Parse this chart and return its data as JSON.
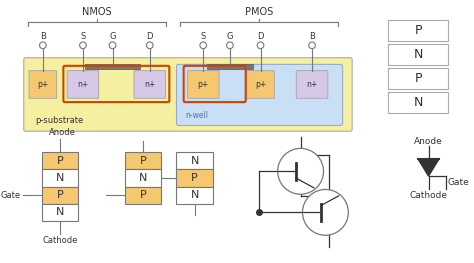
{
  "bg": "#ffffff",
  "sub_color": "#f5f0a0",
  "nwell_color": "#c8dff5",
  "pp_color": "#f5c870",
  "np_color": "#d8c8e8",
  "gate_color": "#777777",
  "orange": "#cc4400",
  "dark": "#333333",
  "gray": "#777777",
  "lgray": "#aaaaaa",
  "nmos": "NMOS",
  "pmos": "PMOS",
  "sub_lbl": "p-substrate",
  "nwell_lbl": "n-well",
  "anode": "Anode",
  "cathode": "Cathode",
  "gate_lbl": "Gate"
}
